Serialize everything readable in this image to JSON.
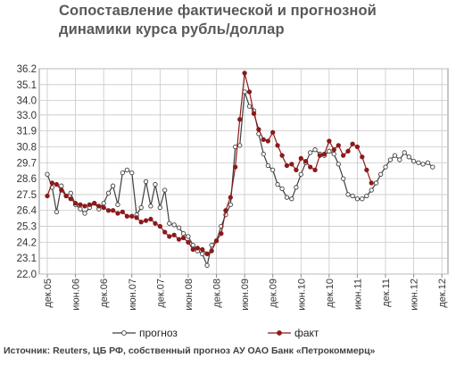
{
  "title_line1": "Сопоставление фактической и прогнозной",
  "title_line2": "динамики курса рубль/доллар",
  "source": "Источник: Reuters, ЦБ РФ, собственный прогноз АУ ОАО Банк «Петрокоммерц»",
  "chart_data": {
    "type": "line",
    "ylim": [
      22.0,
      36.2
    ],
    "y_ticks": [
      "22.0",
      "23.1",
      "24.2",
      "25.3",
      "26.4",
      "27.5",
      "28.6",
      "29.7",
      "30.8",
      "31.9",
      "33.0",
      "34.0",
      "35.1",
      "36.2"
    ],
    "x_ticks": [
      "дек.05",
      "июн.06",
      "дек.06",
      "июн.07",
      "дек.07",
      "июн.08",
      "дек.08",
      "июн.09",
      "дек.09",
      "июн.10",
      "дек.10",
      "июн.11",
      "дек.11",
      "июн.12",
      "дек.12"
    ],
    "grid": true,
    "legend": "bottom",
    "series": [
      {
        "name": "прогноз",
        "color": "#3f3f3f",
        "marker": "open-circle",
        "points": [
          [
            0.0,
            28.9
          ],
          [
            0.17,
            28.0
          ],
          [
            0.33,
            26.3
          ],
          [
            0.5,
            28.1
          ],
          [
            0.67,
            27.4
          ],
          [
            0.83,
            27.6
          ],
          [
            1.0,
            26.8
          ],
          [
            1.17,
            26.5
          ],
          [
            1.33,
            26.2
          ],
          [
            1.5,
            26.6
          ],
          [
            1.67,
            26.9
          ],
          [
            1.83,
            26.5
          ],
          [
            2.0,
            26.9
          ],
          [
            2.17,
            27.6
          ],
          [
            2.33,
            28.1
          ],
          [
            2.5,
            26.8
          ],
          [
            2.67,
            29.0
          ],
          [
            2.83,
            29.2
          ],
          [
            3.0,
            29.0
          ],
          [
            3.17,
            26.1
          ],
          [
            3.33,
            26.6
          ],
          [
            3.5,
            28.4
          ],
          [
            3.67,
            26.7
          ],
          [
            3.83,
            28.2
          ],
          [
            4.0,
            26.6
          ],
          [
            4.17,
            27.8
          ],
          [
            4.33,
            25.5
          ],
          [
            4.5,
            25.4
          ],
          [
            4.67,
            25.2
          ],
          [
            4.83,
            24.8
          ],
          [
            5.0,
            24.6
          ],
          [
            5.17,
            24.0
          ],
          [
            5.33,
            23.6
          ],
          [
            5.5,
            23.4
          ],
          [
            5.67,
            22.6
          ],
          [
            5.83,
            24.0
          ],
          [
            6.0,
            24.3
          ],
          [
            6.17,
            25.3
          ],
          [
            6.33,
            26.1
          ],
          [
            6.5,
            26.8
          ],
          [
            6.67,
            30.8
          ],
          [
            6.83,
            30.9
          ],
          [
            7.0,
            34.6
          ],
          [
            7.17,
            33.6
          ],
          [
            7.33,
            33.3
          ],
          [
            7.5,
            31.7
          ],
          [
            7.67,
            30.3
          ],
          [
            7.83,
            29.5
          ],
          [
            8.0,
            29.2
          ],
          [
            8.17,
            28.2
          ],
          [
            8.33,
            27.9
          ],
          [
            8.5,
            27.3
          ],
          [
            8.67,
            27.2
          ],
          [
            8.83,
            28.0
          ],
          [
            9.0,
            28.9
          ],
          [
            9.17,
            29.7
          ],
          [
            9.33,
            30.4
          ],
          [
            9.5,
            30.6
          ],
          [
            9.67,
            30.3
          ],
          [
            9.83,
            30.2
          ],
          [
            10.0,
            30.5
          ],
          [
            10.17,
            30.3
          ],
          [
            10.33,
            29.6
          ],
          [
            10.5,
            28.6
          ],
          [
            10.67,
            27.5
          ],
          [
            10.83,
            27.4
          ],
          [
            11.0,
            27.2
          ],
          [
            11.17,
            27.2
          ],
          [
            11.33,
            27.4
          ],
          [
            11.5,
            27.8
          ],
          [
            11.67,
            28.3
          ],
          [
            11.83,
            28.9
          ],
          [
            12.0,
            29.4
          ],
          [
            12.17,
            29.9
          ],
          [
            12.33,
            30.2
          ],
          [
            12.5,
            29.9
          ],
          [
            12.67,
            30.4
          ],
          [
            12.83,
            30.1
          ],
          [
            13.0,
            29.8
          ],
          [
            13.17,
            29.7
          ],
          [
            13.33,
            29.6
          ],
          [
            13.5,
            29.7
          ],
          [
            13.67,
            29.4
          ]
        ]
      },
      {
        "name": "факт",
        "color": "#8b1a1a",
        "marker": "filled-circle",
        "points": [
          [
            0.0,
            27.4
          ],
          [
            0.17,
            28.3
          ],
          [
            0.33,
            28.2
          ],
          [
            0.5,
            27.8
          ],
          [
            0.67,
            27.4
          ],
          [
            0.83,
            27.2
          ],
          [
            1.0,
            26.9
          ],
          [
            1.17,
            26.8
          ],
          [
            1.33,
            26.7
          ],
          [
            1.5,
            26.8
          ],
          [
            1.67,
            26.9
          ],
          [
            1.83,
            26.7
          ],
          [
            2.0,
            26.6
          ],
          [
            2.17,
            26.4
          ],
          [
            2.33,
            26.4
          ],
          [
            2.5,
            26.2
          ],
          [
            2.67,
            26.3
          ],
          [
            2.83,
            26.0
          ],
          [
            3.0,
            26.0
          ],
          [
            3.17,
            25.9
          ],
          [
            3.33,
            25.6
          ],
          [
            3.5,
            25.7
          ],
          [
            3.67,
            25.8
          ],
          [
            3.83,
            25.5
          ],
          [
            4.0,
            25.3
          ],
          [
            4.17,
            24.9
          ],
          [
            4.33,
            24.6
          ],
          [
            4.5,
            24.7
          ],
          [
            4.67,
            24.4
          ],
          [
            4.83,
            24.5
          ],
          [
            5.0,
            24.2
          ],
          [
            5.17,
            23.7
          ],
          [
            5.33,
            23.8
          ],
          [
            5.5,
            23.7
          ],
          [
            5.67,
            23.4
          ],
          [
            5.83,
            23.6
          ],
          [
            6.0,
            24.3
          ],
          [
            6.17,
            24.8
          ],
          [
            6.33,
            26.4
          ],
          [
            6.5,
            27.3
          ],
          [
            6.67,
            29.4
          ],
          [
            6.83,
            32.7
          ],
          [
            7.0,
            35.9
          ],
          [
            7.17,
            34.6
          ],
          [
            7.33,
            33.1
          ],
          [
            7.5,
            32.0
          ],
          [
            7.67,
            31.3
          ],
          [
            7.83,
            31.2
          ],
          [
            8.0,
            31.8
          ],
          [
            8.17,
            30.9
          ],
          [
            8.33,
            30.2
          ],
          [
            8.5,
            29.5
          ],
          [
            8.67,
            29.6
          ],
          [
            8.83,
            29.2
          ],
          [
            9.0,
            30.0
          ],
          [
            9.17,
            29.8
          ],
          [
            9.33,
            29.4
          ],
          [
            9.5,
            29.2
          ],
          [
            9.67,
            30.2
          ],
          [
            9.83,
            30.3
          ],
          [
            10.0,
            31.2
          ],
          [
            10.17,
            30.6
          ],
          [
            10.33,
            30.9
          ],
          [
            10.5,
            30.2
          ],
          [
            10.67,
            30.5
          ],
          [
            10.83,
            31.0
          ],
          [
            11.0,
            30.8
          ],
          [
            11.17,
            30.1
          ],
          [
            11.33,
            29.2
          ],
          [
            11.5,
            28.3
          ]
        ]
      }
    ]
  }
}
